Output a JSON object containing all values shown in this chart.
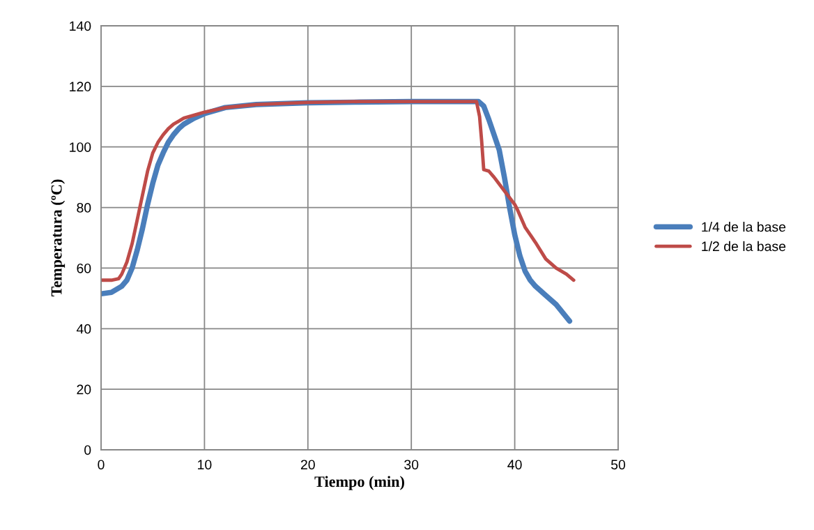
{
  "chart_data": {
    "type": "line",
    "xlabel": "Tiempo (min)",
    "ylabel": "Temperatura (ºC)",
    "xlim": [
      0,
      50
    ],
    "ylim": [
      0,
      140
    ],
    "xticks": [
      0,
      10,
      20,
      30,
      40,
      50
    ],
    "yticks": [
      0,
      20,
      40,
      60,
      80,
      100,
      120,
      140
    ],
    "grid": true,
    "legend": "right",
    "marker": "none",
    "line_style": "solid",
    "series": [
      {
        "name": "1/4 de la base",
        "color": "#4a7ebb",
        "x": [
          0,
          1,
          2,
          2.5,
          3,
          3.5,
          4,
          4.5,
          5,
          5.5,
          6,
          6.5,
          7,
          7.5,
          8,
          9,
          10,
          12,
          15,
          20,
          25,
          30,
          35,
          36.5,
          37,
          37.5,
          38,
          38.5,
          39,
          39.5,
          40,
          40.5,
          41,
          41.5,
          42,
          43,
          44,
          45.3
        ],
        "values": [
          51.5,
          52,
          54,
          56,
          60,
          66,
          73,
          81,
          88,
          94,
          98,
          101.5,
          104,
          106,
          107.5,
          109.5,
          111,
          113,
          114,
          114.6,
          114.8,
          115,
          115,
          115,
          113.5,
          109,
          104,
          99,
          90,
          80,
          71,
          64,
          59,
          56,
          54,
          51,
          48,
          42.5
        ]
      },
      {
        "name": "1/2 de la base",
        "color": "#be4b48",
        "x": [
          0,
          1,
          1.7,
          2,
          2.5,
          3,
          3.5,
          4,
          4.5,
          5,
          5.5,
          6,
          6.5,
          7,
          7.5,
          8,
          9,
          10,
          12,
          15,
          20,
          25,
          30,
          36.3,
          36.6,
          36.8,
          37,
          37.5,
          38,
          39,
          40,
          40.3,
          41,
          42,
          43,
          44,
          45,
          45.7
        ],
        "values": [
          56,
          56,
          56.5,
          58,
          62,
          68,
          76,
          84,
          92,
          98,
          101.5,
          104,
          106,
          107.5,
          108.5,
          109.5,
          110.5,
          111.5,
          113,
          114,
          114.7,
          115,
          115,
          115,
          110,
          102,
          92.5,
          92,
          90,
          85.5,
          81,
          79,
          73.5,
          68.5,
          63,
          60,
          58,
          56
        ]
      }
    ]
  }
}
